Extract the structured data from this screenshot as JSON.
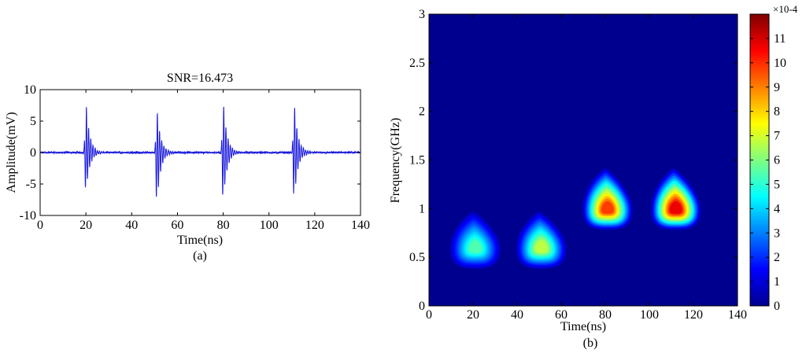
{
  "chart_data": [
    {
      "type": "line",
      "title": "SNR=16.473",
      "caption": "(a)",
      "xlabel": "Time(ns)",
      "ylabel": "Amplitude(mV)",
      "xlim": [
        0,
        140
      ],
      "ylim": [
        -10,
        10
      ],
      "xticks": [
        0,
        20,
        40,
        60,
        80,
        100,
        120,
        140
      ],
      "yticks": [
        -10,
        -5,
        0,
        5,
        10
      ],
      "grid": false,
      "color": "#1a1adb",
      "pulses": [
        {
          "t0": 20,
          "peak": 8.3,
          "trough": -6.5
        },
        {
          "t0": 51,
          "peak": 7.1,
          "trough": -8.4
        },
        {
          "t0": 80,
          "peak": 8.4,
          "trough": -8.0
        },
        {
          "t0": 111,
          "peak": 8.2,
          "trough": -7.6
        }
      ],
      "noise_level": 0.25
    },
    {
      "type": "heatmap",
      "caption": "(b)",
      "xlabel": "Time(ns)",
      "ylabel": "Frequency(GHz)",
      "xlim": [
        0,
        140
      ],
      "ylim": [
        0,
        3
      ],
      "xticks": [
        0,
        20,
        40,
        60,
        80,
        100,
        120,
        140
      ],
      "yticks": [
        0,
        0.5,
        1,
        1.5,
        2,
        2.5,
        3
      ],
      "colorbar": {
        "scale_label": "×10-4",
        "range": [
          0,
          12
        ],
        "ticks": [
          0,
          1,
          2,
          3,
          4,
          5,
          6,
          7,
          8,
          9,
          10,
          11
        ],
        "colormap": "jet"
      },
      "background_color": "#00008f",
      "blobs": [
        {
          "time": 21,
          "freq": 0.6,
          "peak": 5.8
        },
        {
          "time": 51,
          "freq": 0.6,
          "peak": 7.2
        },
        {
          "time": 81,
          "freq": 1.0,
          "peak": 10.5
        },
        {
          "time": 112,
          "freq": 1.0,
          "peak": 11.5
        }
      ]
    }
  ]
}
